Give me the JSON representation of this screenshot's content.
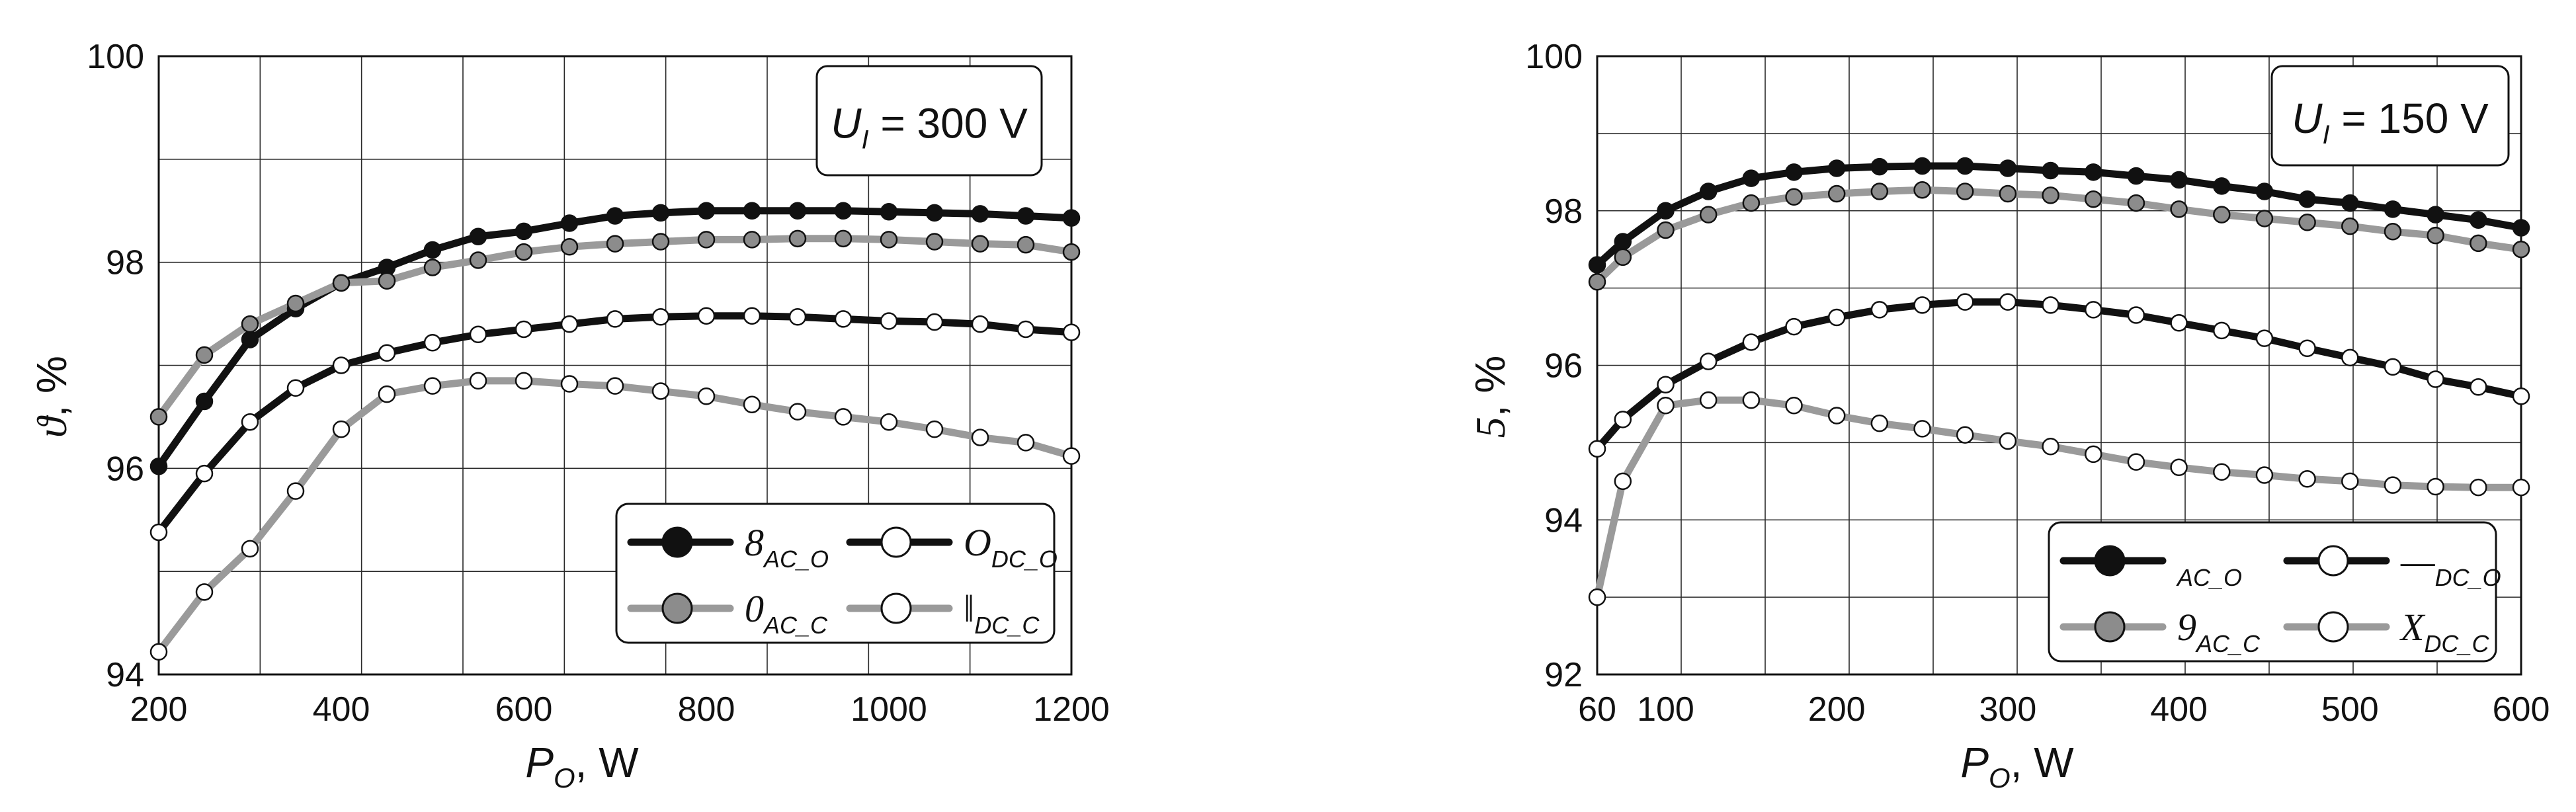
{
  "chart_data": [
    {
      "type": "line",
      "annotation": {
        "symbol": "U",
        "subscript": "I",
        "value": " = 300 V"
      },
      "xlabel": {
        "symbol": "P",
        "subscript": "O",
        "unit": ", W"
      },
      "ylabel": {
        "symbol": "ϑ",
        "unit": ", %"
      },
      "xlim": [
        200,
        1200
      ],
      "ylim": [
        94,
        100
      ],
      "x_ticks": [
        200,
        400,
        600,
        800,
        1000,
        1200
      ],
      "y_ticks": [
        94,
        96,
        98,
        100
      ],
      "grid": true,
      "legend_position": "bottom-right",
      "colors": {
        "black": "#111111",
        "grey": "#9a9a9a",
        "marker_grey": "#8c8c8c",
        "marker_white": "#ffffff"
      },
      "series": [
        {
          "name": "8",
          "subscript": "AC_O",
          "color": "black",
          "marker": "black",
          "x": [
            200,
            250,
            300,
            350,
            400,
            450,
            500,
            550,
            600,
            650,
            700,
            750,
            800,
            850,
            900,
            950,
            1000,
            1050,
            1100,
            1150,
            1200
          ],
          "y": [
            96.02,
            96.65,
            97.25,
            97.55,
            97.8,
            97.95,
            98.12,
            98.25,
            98.3,
            98.38,
            98.45,
            98.48,
            98.5,
            98.5,
            98.5,
            98.5,
            98.49,
            98.48,
            98.47,
            98.45,
            98.43
          ]
        },
        {
          "name": "0",
          "subscript": "AC_C",
          "color": "grey",
          "marker": "grey",
          "x": [
            200,
            250,
            300,
            350,
            400,
            450,
            500,
            550,
            600,
            650,
            700,
            750,
            800,
            850,
            900,
            950,
            1000,
            1050,
            1100,
            1150,
            1200
          ],
          "y": [
            96.5,
            97.1,
            97.4,
            97.6,
            97.8,
            97.82,
            97.95,
            98.02,
            98.1,
            98.15,
            98.18,
            98.2,
            98.22,
            98.22,
            98.23,
            98.23,
            98.22,
            98.2,
            98.18,
            98.17,
            98.1
          ]
        },
        {
          "name": "O",
          "subscript": "DC_O",
          "color": "black",
          "marker": "white",
          "x": [
            200,
            250,
            300,
            350,
            400,
            450,
            500,
            550,
            600,
            650,
            700,
            750,
            800,
            850,
            900,
            950,
            1000,
            1050,
            1100,
            1150,
            1200
          ],
          "y": [
            95.38,
            95.95,
            96.45,
            96.78,
            97.0,
            97.12,
            97.22,
            97.3,
            97.35,
            97.4,
            97.45,
            97.47,
            97.48,
            97.48,
            97.47,
            97.45,
            97.43,
            97.42,
            97.4,
            97.35,
            97.32
          ]
        },
        {
          "name": "‖",
          "subscript": "DC_C",
          "color": "grey",
          "marker": "white",
          "x": [
            200,
            250,
            300,
            350,
            400,
            450,
            500,
            550,
            600,
            650,
            700,
            750,
            800,
            850,
            900,
            950,
            1000,
            1050,
            1100,
            1150,
            1200
          ],
          "y": [
            94.22,
            94.8,
            95.22,
            95.78,
            96.38,
            96.72,
            96.8,
            96.85,
            96.85,
            96.82,
            96.8,
            96.75,
            96.7,
            96.62,
            96.55,
            96.5,
            96.45,
            96.38,
            96.3,
            96.25,
            96.12
          ]
        }
      ]
    },
    {
      "type": "line",
      "annotation": {
        "symbol": "U",
        "subscript": "I",
        "value": " = 150 V"
      },
      "xlabel": {
        "symbol": "P",
        "subscript": "O",
        "unit": ", W"
      },
      "ylabel": {
        "symbol": "5",
        "unit": ", %"
      },
      "xlim": [
        60,
        600
      ],
      "ylim": [
        92,
        100
      ],
      "x_ticks": [
        60,
        100,
        200,
        300,
        400,
        500,
        600
      ],
      "y_ticks": [
        92,
        94,
        96,
        98,
        100
      ],
      "grid": true,
      "legend_position": "bottom-right",
      "colors": {
        "black": "#111111",
        "grey": "#9a9a9a",
        "marker_grey": "#8c8c8c",
        "marker_white": "#ffffff"
      },
      "series": [
        {
          "name": "",
          "subscript": "AC_O",
          "color": "black",
          "marker": "black",
          "x": [
            60,
            75,
            100,
            125,
            150,
            175,
            200,
            225,
            250,
            275,
            300,
            325,
            350,
            375,
            400,
            425,
            450,
            475,
            500,
            525,
            550,
            575,
            600
          ],
          "y": [
            97.3,
            97.6,
            98.0,
            98.25,
            98.42,
            98.5,
            98.55,
            98.57,
            98.58,
            98.58,
            98.55,
            98.52,
            98.5,
            98.45,
            98.4,
            98.32,
            98.25,
            98.15,
            98.1,
            98.02,
            97.95,
            97.88,
            97.78
          ]
        },
        {
          "name": "9",
          "subscript": "AC_C",
          "color": "grey",
          "marker": "grey",
          "x": [
            60,
            75,
            100,
            125,
            150,
            175,
            200,
            225,
            250,
            275,
            300,
            325,
            350,
            375,
            400,
            425,
            450,
            475,
            500,
            525,
            550,
            575,
            600
          ],
          "y": [
            97.08,
            97.4,
            97.75,
            97.95,
            98.1,
            98.18,
            98.22,
            98.25,
            98.27,
            98.25,
            98.22,
            98.2,
            98.15,
            98.1,
            98.02,
            97.95,
            97.9,
            97.85,
            97.8,
            97.73,
            97.68,
            97.58,
            97.5
          ]
        },
        {
          "name": "—",
          "subscript": "DC_O",
          "color": "black",
          "marker": "white",
          "x": [
            60,
            75,
            100,
            125,
            150,
            175,
            200,
            225,
            250,
            275,
            300,
            325,
            350,
            375,
            400,
            425,
            450,
            475,
            500,
            525,
            550,
            575,
            600
          ],
          "y": [
            94.92,
            95.3,
            95.75,
            96.05,
            96.3,
            96.5,
            96.62,
            96.72,
            96.78,
            96.82,
            96.82,
            96.78,
            96.72,
            96.65,
            96.55,
            96.45,
            96.35,
            96.22,
            96.1,
            95.98,
            95.82,
            95.72,
            95.6
          ]
        },
        {
          "name": "X",
          "subscript": "DC_C",
          "color": "grey",
          "marker": "white",
          "x": [
            60,
            75,
            100,
            125,
            150,
            175,
            200,
            225,
            250,
            275,
            300,
            325,
            350,
            375,
            400,
            425,
            450,
            475,
            500,
            525,
            550,
            575,
            600
          ],
          "y": [
            93.0,
            94.5,
            95.48,
            95.55,
            95.55,
            95.48,
            95.35,
            95.25,
            95.18,
            95.1,
            95.02,
            94.95,
            94.85,
            94.75,
            94.68,
            94.62,
            94.58,
            94.53,
            94.5,
            94.45,
            94.43,
            94.42,
            94.42
          ]
        }
      ]
    }
  ]
}
